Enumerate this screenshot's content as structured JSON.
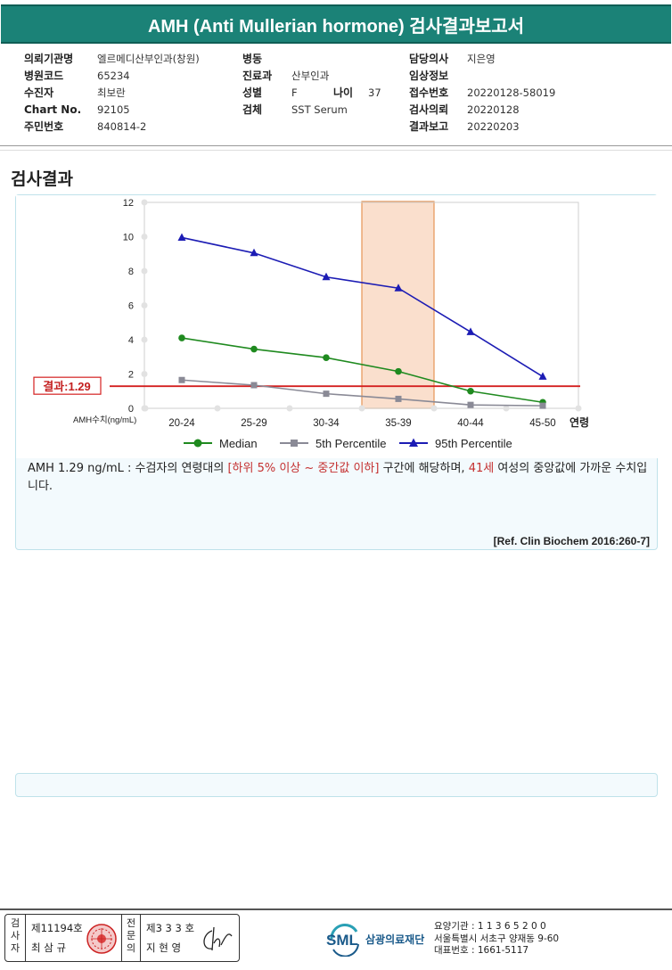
{
  "report_title": "AMH (Anti Mullerian hormone) 검사결과보고서",
  "info": {
    "col1": [
      {
        "label": "의뢰기관명",
        "value": "엘르메디산부인과(창원)"
      },
      {
        "label": "병원코드",
        "value": "65234"
      },
      {
        "label": "수진자",
        "value": "최보란"
      },
      {
        "label": "Chart No.",
        "value": "92105"
      },
      {
        "label": "주민번호",
        "value": "840814-2"
      }
    ],
    "col2": [
      {
        "label": "병동",
        "value": ""
      },
      {
        "label": "진료과",
        "value": "산부인과"
      },
      {
        "label": "성별",
        "value": "F"
      },
      {
        "label": "검체",
        "value": "SST Serum"
      }
    ],
    "age": {
      "label": "나이",
      "value": "37"
    },
    "col3": [
      {
        "label": "담당의사",
        "value": "지은영"
      },
      {
        "label": "임상정보",
        "value": ""
      },
      {
        "label": "접수번호",
        "value": "20220128-58019"
      },
      {
        "label": "검사의뢰",
        "value": "20220128"
      },
      {
        "label": "결과보고",
        "value": "20220203"
      }
    ]
  },
  "section_title": "검사결과",
  "chart_data": {
    "type": "line",
    "categories": [
      "20-24",
      "25-29",
      "30-34",
      "35-39",
      "40-44",
      "45-50"
    ],
    "xlabel": "연령",
    "ylabel": "AMH수치(ng/mL)",
    "ylim": [
      0,
      12
    ],
    "yticks": [
      0,
      2,
      4,
      6,
      8,
      10,
      12
    ],
    "highlight_category": "35-39",
    "result_line": {
      "label": "결과:1.29",
      "value": 1.29
    },
    "series": [
      {
        "name": "Median",
        "color": "#1f8a1f",
        "marker": "circle",
        "values": [
          4.1,
          3.45,
          2.95,
          2.15,
          1.0,
          0.35
        ]
      },
      {
        "name": "5th Percentile",
        "color": "#8a8a96",
        "marker": "square",
        "values": [
          1.65,
          1.35,
          0.85,
          0.55,
          0.2,
          0.15
        ]
      },
      {
        "name": "95th Percentile",
        "color": "#1c1cb4",
        "marker": "triangle",
        "values": [
          9.95,
          9.05,
          7.65,
          7.0,
          4.45,
          1.85
        ]
      }
    ],
    "grid": true,
    "legend_position": "bottom"
  },
  "comment": {
    "text1": "AMH  1.29 ng/mL : 수검자의 연령대의 ",
    "highlight1": "[하위 5% 이상 ~ 중간값 이하]",
    "text2": " 구간에 해당하며, ",
    "highlight2": "41세",
    "text3": " 여성의 중앙값에 가까운 수치입니다."
  },
  "reference": "[Ref. Clin Biochem 2016:260-7]",
  "sign": {
    "label1": "검사자",
    "no1": "제11194호",
    "name1": "최 삼 규",
    "label2": "전문의",
    "no2": "제3 3 3 호",
    "name2": "지 현 영"
  },
  "org": {
    "logo_text": "SML",
    "name": "삼광의료재단",
    "code": "요양기관 : 1 1 3 6 5 2 0 0",
    "address": "서울특별시 서초구 양재동 9-60",
    "phone": "대표번호 : 1661-5117"
  }
}
